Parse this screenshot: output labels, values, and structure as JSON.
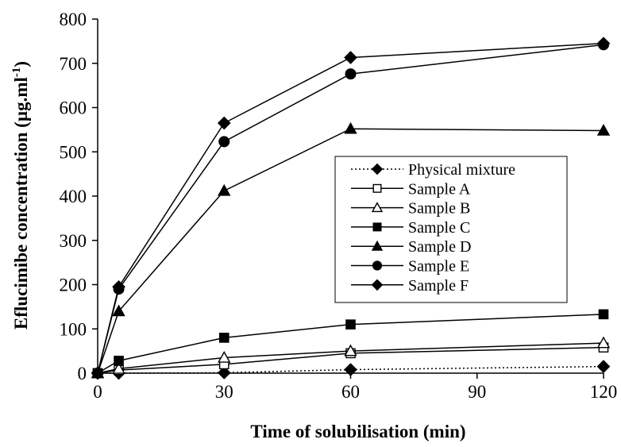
{
  "chart_data": {
    "type": "line",
    "title": "",
    "xlabel": "Time of solubilisation (min)",
    "ylabel_main": "Eflucimibe concentration (µg.ml",
    "ylabel_sup": "-1",
    "ylabel_close": ")",
    "xlim": [
      0,
      120
    ],
    "ylim": [
      0,
      800
    ],
    "xticks": [
      0,
      30,
      60,
      90,
      120
    ],
    "yticks": [
      0,
      100,
      200,
      300,
      400,
      500,
      600,
      700,
      800
    ],
    "grid": false,
    "legend_position": "center-right",
    "x": [
      0,
      5,
      30,
      60,
      120
    ],
    "series": [
      {
        "name": "Physical mixture",
        "values": [
          0,
          0,
          1,
          8,
          15
        ],
        "marker": "diamond",
        "filled": true,
        "line": "dotted"
      },
      {
        "name": "Sample A",
        "values": [
          0,
          7,
          20,
          45,
          58
        ],
        "marker": "square",
        "filled": false,
        "line": "solid"
      },
      {
        "name": "Sample B",
        "values": [
          0,
          10,
          35,
          50,
          68
        ],
        "marker": "triangle",
        "filled": false,
        "line": "solid"
      },
      {
        "name": "Sample C",
        "values": [
          0,
          28,
          80,
          110,
          133
        ],
        "marker": "square",
        "filled": true,
        "line": "solid"
      },
      {
        "name": "Sample D",
        "values": [
          0,
          140,
          412,
          552,
          548
        ],
        "marker": "triangle",
        "filled": true,
        "line": "solid"
      },
      {
        "name": "Sample E",
        "values": [
          0,
          190,
          523,
          676,
          742
        ],
        "marker": "circle",
        "filled": true,
        "line": "solid"
      },
      {
        "name": "Sample F",
        "values": [
          0,
          195,
          565,
          713,
          745
        ],
        "marker": "diamond",
        "filled": true,
        "line": "solid"
      }
    ],
    "colors": {
      "ink": "#000000",
      "background": "#ffffff"
    }
  }
}
